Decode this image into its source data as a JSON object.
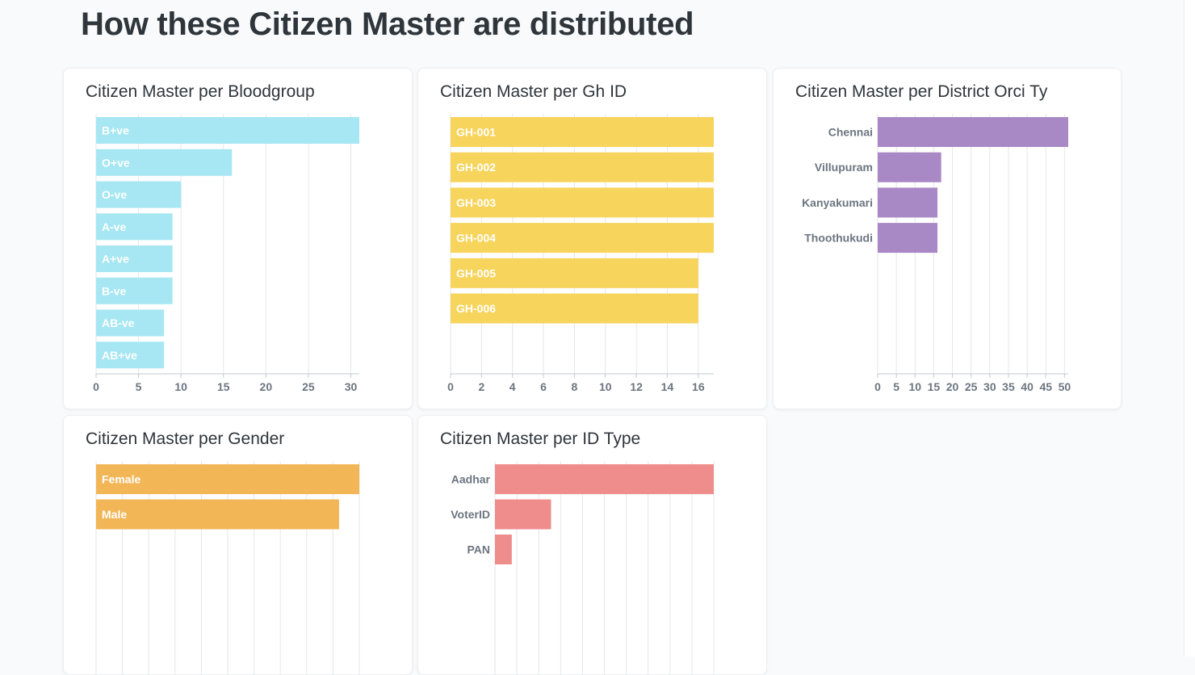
{
  "page": {
    "title": "How these Citizen Master are distributed"
  },
  "colors": {
    "cyan": "#a6e7f3",
    "yellow": "#f7d45c",
    "purple": "#a989c5",
    "orange": "#f2b657",
    "red": "#ef8c8c"
  },
  "chart_data": [
    {
      "id": "bloodgroup",
      "type": "bar",
      "orientation": "horizontal",
      "title": "Citizen Master per Bloodgroup",
      "categories": [
        "B+ve",
        "O+ve",
        "O-ve",
        "A-ve",
        "A+ve",
        "B-ve",
        "AB-ve",
        "AB+ve"
      ],
      "values": [
        31,
        16,
        10,
        9,
        9,
        9,
        8,
        8
      ],
      "xlim": [
        0,
        31
      ],
      "ticks": [
        0,
        5,
        10,
        15,
        20,
        25,
        30
      ],
      "labels_inside": true,
      "color": "#a6e7f3",
      "grid": true
    },
    {
      "id": "ghid",
      "type": "bar",
      "orientation": "horizontal",
      "title": "Citizen Master per Gh ID",
      "categories": [
        "GH-001",
        "GH-002",
        "GH-003",
        "GH-004",
        "GH-005",
        "GH-006"
      ],
      "values": [
        17,
        17,
        17,
        17,
        16,
        16
      ],
      "xlim": [
        0,
        17
      ],
      "ticks": [
        0,
        2,
        4,
        6,
        8,
        10,
        12,
        14,
        16
      ],
      "labels_inside": true,
      "color": "#f7d45c",
      "grid": true
    },
    {
      "id": "district",
      "type": "bar",
      "orientation": "horizontal",
      "title": "Citizen Master per District Orci Ty",
      "categories": [
        "Chennai",
        "Villupuram",
        "Kanyakumari",
        "Thoothukudi"
      ],
      "values": [
        51,
        17,
        16,
        16
      ],
      "xlim": [
        0,
        51
      ],
      "ticks": [
        0,
        5,
        10,
        15,
        20,
        25,
        30,
        35,
        40,
        45,
        50
      ],
      "labels_inside": false,
      "color": "#a989c5",
      "grid": true
    },
    {
      "id": "gender",
      "type": "bar",
      "orientation": "horizontal",
      "title": "Citizen Master per Gender",
      "categories": [
        "Female",
        "Male"
      ],
      "values": [
        52,
        48
      ],
      "xlim": [
        0,
        52
      ],
      "ticks": [],
      "labels_inside": true,
      "color": "#f2b657",
      "grid": true
    },
    {
      "id": "idtype",
      "type": "bar",
      "orientation": "horizontal",
      "title": "Citizen Master per ID Type",
      "categories": [
        "Aadhar",
        "VoterID",
        "PAN"
      ],
      "values": [
        78,
        20,
        6
      ],
      "xlim": [
        0,
        78
      ],
      "ticks": [],
      "labels_inside": false,
      "color": "#ef8c8c",
      "grid": true
    }
  ]
}
